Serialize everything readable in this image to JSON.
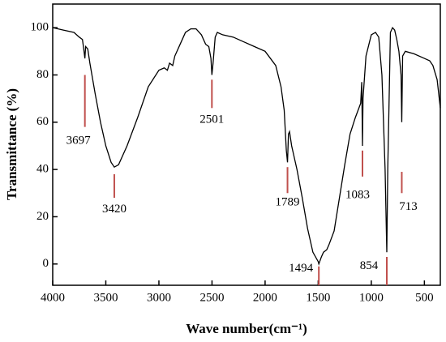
{
  "chart_data": {
    "type": "line",
    "xlabel": "Wave number(cm⁻¹)",
    "ylabel": "Transmittance (%)",
    "x": [
      4000,
      3900,
      3800,
      3750,
      3720,
      3705,
      3697,
      3690,
      3670,
      3650,
      3600,
      3550,
      3500,
      3450,
      3420,
      3380,
      3300,
      3200,
      3100,
      3000,
      2950,
      2920,
      2900,
      2870,
      2850,
      2800,
      2750,
      2700,
      2650,
      2600,
      2560,
      2530,
      2510,
      2501,
      2490,
      2470,
      2450,
      2400,
      2300,
      2200,
      2100,
      2000,
      1900,
      1850,
      1820,
      1800,
      1789,
      1780,
      1770,
      1750,
      1700,
      1650,
      1600,
      1550,
      1500,
      1494,
      1470,
      1450,
      1420,
      1400,
      1350,
      1300,
      1250,
      1200,
      1150,
      1100,
      1090,
      1083,
      1078,
      1050,
      1000,
      960,
      930,
      900,
      870,
      854,
      845,
      820,
      800,
      780,
      760,
      740,
      720,
      713,
      705,
      680,
      600,
      500,
      450,
      420,
      380,
      350
    ],
    "values": [
      100,
      99,
      98,
      96,
      95,
      90,
      87,
      92,
      91,
      85,
      72,
      60,
      50,
      43,
      41,
      42,
      50,
      62,
      75,
      82,
      83,
      82,
      85,
      84,
      88,
      93,
      98,
      99.5,
      99.5,
      97,
      93,
      92,
      87,
      80,
      85,
      96,
      98,
      97,
      96,
      94,
      92,
      90,
      84,
      75,
      65,
      48,
      43,
      55,
      56,
      50,
      40,
      28,
      15,
      5,
      1,
      0,
      3,
      5,
      6,
      8,
      14,
      28,
      42,
      55,
      62,
      68,
      77,
      50,
      70,
      88,
      97,
      98,
      96,
      80,
      40,
      5,
      40,
      98,
      100,
      99,
      95,
      90,
      80,
      60,
      88,
      90,
      89,
      87,
      86,
      84,
      78,
      66
    ],
    "color": "#000000",
    "peaks": [
      3697,
      3420,
      2501,
      1789,
      1494,
      1083,
      854,
      713
    ],
    "peak_color": "#c0504d",
    "xlim": [
      4000,
      350
    ],
    "xticks": [
      4000,
      3500,
      3000,
      2500,
      2000,
      1500,
      1000,
      500
    ],
    "ylim": [
      -9,
      110
    ],
    "yticks": [
      0,
      20,
      40,
      60,
      80,
      100
    ]
  }
}
